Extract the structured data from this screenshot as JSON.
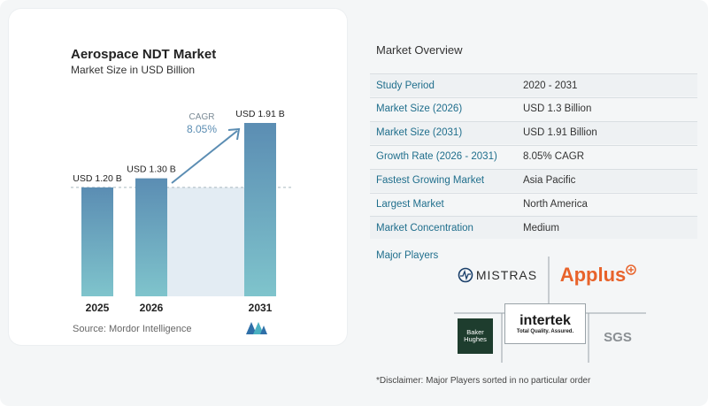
{
  "chart": {
    "title": "Aerospace NDT Market",
    "subtitle": "Market Size in USD Billion",
    "source": "Source:  Mordor Intelligence",
    "cagr_label": "CAGR",
    "cagr_value": "8.05%"
  },
  "chart_data": {
    "type": "bar",
    "categories": [
      "2025",
      "2026",
      "2031"
    ],
    "values": [
      1.2,
      1.3,
      1.91
    ],
    "data_labels": [
      "USD 1.20 B",
      "USD 1.30 B",
      "USD 1.91 B"
    ],
    "title": "Aerospace NDT Market",
    "subtitle": "Market Size in USD Billion",
    "annotation": "CAGR 8.05%",
    "ylim": [
      0,
      2.0
    ],
    "grid": false,
    "bar_color": "#5b8db3"
  },
  "overview": {
    "title": "Market Overview",
    "rows": [
      {
        "label": "Study Period",
        "value": "2020 - 2031"
      },
      {
        "label": "Market Size (2026)",
        "value": "USD 1.3 Billion"
      },
      {
        "label": "Market Size (2031)",
        "value": "USD 1.91 Billion"
      },
      {
        "label": "Growth Rate (2026 - 2031)",
        "value": "8.05% CAGR"
      },
      {
        "label": "Fastest Growing Market",
        "value": "Asia Pacific"
      },
      {
        "label": "Largest Market",
        "value": "North America"
      },
      {
        "label": "Market Concentration",
        "value": "Medium"
      }
    ],
    "players_title": "Major Players",
    "players": {
      "mistras": "MISTRAS",
      "applus": "Applus",
      "baker_line1": "Baker",
      "baker_line2": "Hughes",
      "intertek": "intertek",
      "intertek_tag": "Total Quality. Assured.",
      "sgs": "SGS"
    },
    "disclaimer": "*Disclaimer: Major Players sorted in no particular order"
  },
  "colors": {
    "accent_text": "#1f6e8c",
    "bar_top": "#5b8db3",
    "bar_bottom": "#7fc4cc",
    "arrow": "#5b8db3"
  }
}
